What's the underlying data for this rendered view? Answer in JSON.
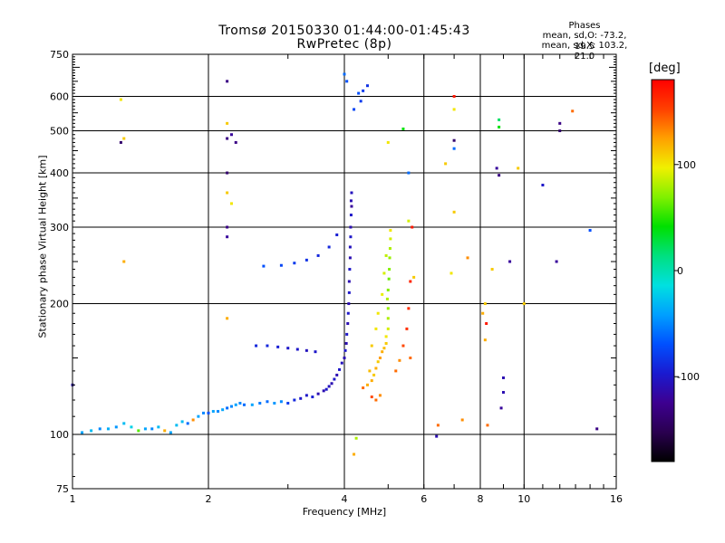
{
  "figure": {
    "title_line_1": "Tromsø 20150330 01:44:00-01:45:43",
    "title_line_2": "RwPretec (8p)",
    "phase_box": {
      "heading": "Phases",
      "line_o": "mean, sd,O: -73.2, 19.5",
      "line_x": "mean, sd,X: 103.2, 21.0"
    }
  },
  "chart_data": {
    "type": "scatter",
    "xlabel": "Frequency [MHz]",
    "ylabel": "Stationary phase Virtual Height [km]",
    "x_scale": "log",
    "y_scale": "log",
    "xlim": [
      1,
      16
    ],
    "ylim": [
      75,
      750
    ],
    "x_ticks": [
      1,
      2,
      4,
      6,
      8,
      10,
      16
    ],
    "y_ticks": [
      75,
      100,
      200,
      300,
      400,
      500,
      600,
      750
    ],
    "x_grid": [
      2,
      4,
      6,
      8,
      10
    ],
    "y_grid": [
      100,
      200,
      300,
      400,
      500,
      600
    ],
    "grid": true,
    "colorbar": {
      "label": "[deg]",
      "range": [
        -180,
        180
      ],
      "ticks": [
        100,
        0,
        -100
      ],
      "colormap": [
        "#000000",
        "#2a0050",
        "#3d0090",
        "#1a1ad0",
        "#0050ff",
        "#00a0ff",
        "#00e0e0",
        "#00e080",
        "#00e000",
        "#80f000",
        "#f0f000",
        "#ffa000",
        "#ff4000",
        "#ff0000"
      ]
    },
    "series": [
      {
        "points": [
          [
            1.0,
            130,
            -110
          ],
          [
            1.05,
            101,
            -40
          ],
          [
            1.1,
            102,
            -30
          ],
          [
            1.15,
            103,
            -50
          ],
          [
            1.2,
            103,
            -35
          ],
          [
            1.25,
            104,
            -45
          ],
          [
            1.3,
            106,
            -30
          ],
          [
            1.35,
            104,
            -20
          ],
          [
            1.4,
            102,
            60
          ],
          [
            1.45,
            103,
            -40
          ],
          [
            1.5,
            103,
            -50
          ],
          [
            1.55,
            104,
            -30
          ],
          [
            1.6,
            102,
            120
          ],
          [
            1.65,
            101,
            -40
          ],
          [
            1.7,
            105,
            -30
          ],
          [
            1.75,
            107,
            -30
          ],
          [
            1.8,
            106,
            -60
          ],
          [
            1.85,
            108,
            130
          ],
          [
            1.9,
            110,
            -40
          ],
          [
            1.95,
            112,
            -50
          ],
          [
            2.0,
            112,
            -70
          ],
          [
            2.05,
            113,
            -40
          ],
          [
            2.1,
            113,
            -50
          ],
          [
            2.15,
            114,
            -40
          ],
          [
            2.2,
            115,
            -60
          ],
          [
            2.25,
            116,
            -50
          ],
          [
            2.3,
            117,
            -40
          ],
          [
            2.35,
            118,
            -50
          ],
          [
            2.4,
            117,
            -60
          ],
          [
            2.5,
            117,
            -40
          ],
          [
            2.6,
            118,
            -55
          ],
          [
            2.7,
            119,
            -60
          ],
          [
            2.8,
            118,
            -45
          ],
          [
            2.9,
            119,
            -50
          ],
          [
            3.0,
            118,
            -80
          ],
          [
            3.1,
            120,
            -90
          ],
          [
            3.2,
            121,
            -100
          ],
          [
            3.3,
            123,
            -100
          ],
          [
            3.4,
            122,
            -95
          ],
          [
            3.5,
            124,
            -110
          ],
          [
            3.6,
            126,
            -110
          ],
          [
            3.65,
            127,
            -100
          ],
          [
            3.7,
            129,
            -105
          ],
          [
            3.75,
            131,
            -110
          ],
          [
            3.8,
            134,
            -100
          ],
          [
            3.85,
            137,
            -110
          ],
          [
            3.9,
            141,
            -100
          ],
          [
            3.95,
            146,
            -105
          ],
          [
            4.0,
            150,
            -110
          ],
          [
            4.02,
            156,
            -100
          ],
          [
            4.04,
            162,
            -110
          ],
          [
            4.05,
            170,
            -100
          ],
          [
            4.07,
            180,
            -110
          ],
          [
            4.08,
            190,
            -100
          ],
          [
            4.09,
            200,
            -110
          ],
          [
            4.1,
            212,
            -100
          ],
          [
            4.1,
            225,
            -110
          ],
          [
            4.11,
            240,
            -100
          ],
          [
            4.12,
            255,
            -110
          ],
          [
            4.12,
            270,
            -105
          ],
          [
            4.13,
            285,
            -100
          ],
          [
            4.13,
            300,
            -110
          ],
          [
            4.14,
            320,
            -100
          ],
          [
            4.14,
            345,
            -110
          ],
          [
            4.15,
            360,
            -105
          ],
          [
            2.55,
            160,
            -90
          ],
          [
            2.7,
            160,
            -90
          ],
          [
            2.85,
            159,
            -95
          ],
          [
            3.0,
            158,
            -100
          ],
          [
            3.15,
            157,
            -100
          ],
          [
            3.3,
            156,
            -105
          ],
          [
            3.45,
            155,
            -100
          ],
          [
            2.65,
            244,
            -70
          ],
          [
            2.9,
            245,
            -75
          ],
          [
            3.1,
            248,
            -80
          ],
          [
            3.3,
            252,
            -85
          ],
          [
            3.5,
            258,
            -90
          ],
          [
            3.7,
            270,
            -90
          ],
          [
            3.85,
            288,
            -95
          ],
          [
            4.4,
            618,
            -80
          ],
          [
            4.5,
            635,
            -85
          ],
          [
            4.3,
            610,
            -70
          ],
          [
            4.05,
            650,
            -70
          ],
          [
            4.2,
            560,
            -75
          ],
          [
            4.35,
            585,
            -80
          ],
          [
            4.15,
            335,
            -120
          ]
        ]
      },
      {
        "points": [
          [
            4.4,
            128,
            140
          ],
          [
            4.5,
            130,
            120
          ],
          [
            4.6,
            133,
            120
          ],
          [
            4.65,
            137,
            110
          ],
          [
            4.7,
            142,
            120
          ],
          [
            4.75,
            147,
            110
          ],
          [
            4.8,
            150,
            125
          ],
          [
            4.85,
            155,
            120
          ],
          [
            4.9,
            158,
            115
          ],
          [
            4.95,
            162,
            110
          ],
          [
            4.95,
            168,
            100
          ],
          [
            5.0,
            175,
            90
          ],
          [
            5.0,
            185,
            80
          ],
          [
            5.0,
            195,
            75
          ],
          [
            4.98,
            205,
            80
          ],
          [
            5.0,
            215,
            70
          ],
          [
            5.02,
            228,
            65
          ],
          [
            5.03,
            240,
            70
          ],
          [
            5.04,
            255,
            75
          ],
          [
            5.05,
            268,
            80
          ],
          [
            5.06,
            282,
            90
          ],
          [
            5.06,
            295,
            100
          ],
          [
            4.6,
            122,
            150
          ],
          [
            4.7,
            120,
            140
          ],
          [
            4.8,
            123,
            130
          ],
          [
            5.2,
            140,
            140
          ],
          [
            5.3,
            148,
            130
          ],
          [
            5.4,
            160,
            150
          ],
          [
            5.5,
            175,
            160
          ],
          [
            5.6,
            150,
            140
          ],
          [
            5.55,
            195,
            160
          ],
          [
            5.6,
            225,
            165
          ],
          [
            5.65,
            300,
            170
          ],
          [
            4.55,
            140,
            115
          ],
          [
            4.6,
            160,
            110
          ],
          [
            4.7,
            175,
            100
          ],
          [
            4.75,
            190,
            100
          ],
          [
            4.85,
            210,
            95
          ],
          [
            4.9,
            235,
            90
          ],
          [
            4.95,
            258,
            85
          ],
          [
            5.7,
            230,
            110
          ]
        ]
      },
      {
        "points": [
          [
            1.28,
            590,
            100
          ],
          [
            1.28,
            470,
            -140
          ],
          [
            1.3,
            480,
            110
          ],
          [
            1.3,
            250,
            120
          ],
          [
            2.2,
            650,
            -130
          ],
          [
            2.2,
            520,
            110
          ],
          [
            2.25,
            490,
            -120
          ],
          [
            2.3,
            470,
            -130
          ],
          [
            2.2,
            480,
            -130
          ],
          [
            2.2,
            400,
            -140
          ],
          [
            2.2,
            360,
            110
          ],
          [
            2.25,
            340,
            100
          ],
          [
            2.2,
            300,
            -130
          ],
          [
            2.2,
            285,
            -120
          ],
          [
            2.2,
            185,
            120
          ],
          [
            4.0,
            675,
            -60
          ],
          [
            4.25,
            98,
            80
          ],
          [
            4.2,
            90,
            120
          ],
          [
            5.0,
            470,
            100
          ],
          [
            5.4,
            505,
            40
          ],
          [
            5.55,
            400,
            -60
          ],
          [
            5.55,
            310,
            90
          ],
          [
            6.45,
            105,
            140
          ],
          [
            6.4,
            99,
            -110
          ],
          [
            6.7,
            420,
            110
          ],
          [
            7.0,
            560,
            100
          ],
          [
            7.0,
            600,
            170
          ],
          [
            7.0,
            475,
            -140
          ],
          [
            7.0,
            455,
            -60
          ],
          [
            7.0,
            325,
            110
          ],
          [
            7.3,
            108,
            130
          ],
          [
            7.5,
            255,
            130
          ],
          [
            8.1,
            190,
            120
          ],
          [
            8.2,
            200,
            110
          ],
          [
            8.25,
            180,
            170
          ],
          [
            8.3,
            105,
            140
          ],
          [
            8.5,
            240,
            110
          ],
          [
            8.7,
            410,
            -120
          ],
          [
            8.8,
            395,
            -130
          ],
          [
            8.8,
            530,
            20
          ],
          [
            8.8,
            510,
            40
          ],
          [
            9.0,
            125,
            -110
          ],
          [
            8.9,
            115,
            -120
          ],
          [
            9.0,
            135,
            -110
          ],
          [
            9.3,
            250,
            -120
          ],
          [
            9.7,
            410,
            110
          ],
          [
            10.0,
            200,
            110
          ],
          [
            11.0,
            375,
            -100
          ],
          [
            11.8,
            250,
            -120
          ],
          [
            12.0,
            520,
            -130
          ],
          [
            12.0,
            500,
            -140
          ],
          [
            12.8,
            555,
            140
          ],
          [
            14.0,
            295,
            -70
          ],
          [
            14.5,
            103,
            -130
          ],
          [
            6.9,
            235,
            100
          ],
          [
            8.2,
            165,
            120
          ]
        ]
      }
    ]
  }
}
